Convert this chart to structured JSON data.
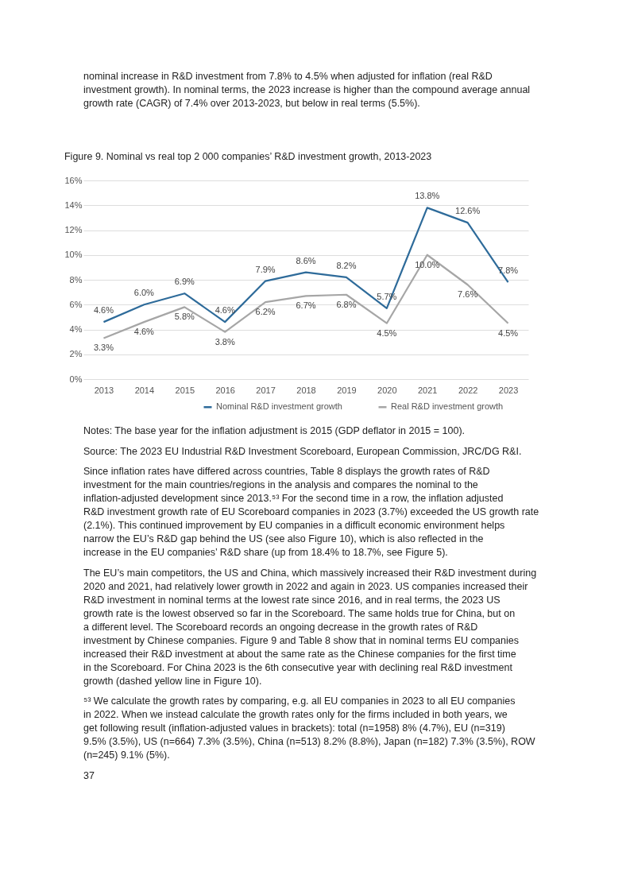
{
  "chart_data": {
    "type": "line",
    "title": "Figure 9. Nominal vs real top 2 000 companies’ R&D investment growth, 2013-2023",
    "categories": [
      "2013",
      "2014",
      "2015",
      "2016",
      "2017",
      "2018",
      "2019",
      "2020",
      "2021",
      "2022",
      "2023"
    ],
    "series": [
      {
        "name": "Nominal R&D investment growth",
        "color": "#2e6b9a",
        "values": [
          4.6,
          6.0,
          6.9,
          4.6,
          7.9,
          8.6,
          8.2,
          5.7,
          13.8,
          12.6,
          7.8
        ],
        "value_labels": [
          "4.6%",
          "6.0%",
          "6.9%",
          "4.6%",
          "7.9%",
          "8.6%",
          "8.2%",
          "5.7%",
          "13.8%",
          "12.6%",
          "7.8%"
        ]
      },
      {
        "name": "Real R&D investment growth",
        "color": "#a6a6a6",
        "values": [
          3.3,
          4.6,
          5.8,
          3.8,
          6.2,
          6.7,
          6.8,
          4.5,
          10.0,
          7.6,
          4.5
        ],
        "value_labels": [
          "3.3%",
          "4.6%",
          "5.8%",
          "3.8%",
          "6.2%",
          "6.7%",
          "6.8%",
          "4.5%",
          "10.0%",
          "7.6%",
          "4.5%"
        ]
      }
    ],
    "ylim": [
      0,
      16
    ],
    "yticks": [
      {
        "value": 0,
        "label": "0%"
      },
      {
        "value": 2,
        "label": "2%"
      },
      {
        "value": 4,
        "label": "4%"
      },
      {
        "value": 6,
        "label": "6%"
      },
      {
        "value": 8,
        "label": "8%"
      },
      {
        "value": 10,
        "label": "10%"
      },
      {
        "value": 12,
        "label": "12%"
      },
      {
        "value": 14,
        "label": "14%"
      },
      {
        "value": 16,
        "label": "16%"
      }
    ],
    "grid": "y",
    "legend": "bottom",
    "annotations": [
      "nominal increase in R&D investment from 7.8% to 4.5% when adjusted for inflation (real R&D investment growth). In nominal terms, the 2023 increase is higher than the compound average annual growth rate (CAGR) of 7.4% over 2013-2023, but below in real terms (5.5%).",
      "Notes: The base year for the inflation adjustment is 2015 (GDP deflator in 2015 = 100).",
      "Source: The 2023 EU Industrial R&D Investment Scoreboard, European Commission, JRC/DG R&I.",
      "Since inflation rates have differed across countries, Table 8 displays the growth rates of R&D investment for the main countries/regions in the analysis and compares the nominal to the inflation-adjusted development since 2013.⁵³ For the second time in a row, the inflation adjusted R&D investment growth rate of EU Scoreboard companies in 2023 (3.7%) exceeded the US growth rate (2.1%). This continued improvement by EU companies in a difficult economic environment helps narrow the EU’s R&D gap behind the US (see also Figure 10), which is also reflected in the increase in the EU companies’ R&D share (up from 18.4% to 18.7%, see Figure 5).",
      "The EU’s main competitors, the US and China, which massively increased their R&D investment during 2020 and 2021, had relatively lower growth in 2022 and again in 2023. US companies increased their R&D investment in nominal terms at the lowest rate since 2016, and in real terms, the 2023 US growth rate is the lowest observed so far in the Scoreboard. The same holds true for China, but on a different level. The Scoreboard records an ongoing decrease in the growth rates of R&D investment by Chinese companies. Figure 9 and Table 8 show that in nominal terms EU companies increased their R&D investment at about the same rate as the Chinese companies for the first time in the Scoreboard. For China 2023 is the 6th consecutive year with declining real R&D investment growth (dashed yellow line in Figure 10).",
      "⁵³ We calculate the growth rates by comparing, e.g. all EU companies in 2023 to all EU companies in 2022. When we instead calculate the growth rates only for the firms included in both years, we get following result (inflation-adjusted values in brackets): total (n=1958) 8% (4.7%), EU (n=319) 9.5% (3.5%), US (n=664) 7.3% (3.5%), China (n=513) 8.2% (8.8%), Japan (n=182) 7.3% (3.5%), ROW (n=245) 9.1% (5%).",
      "37"
    ]
  }
}
